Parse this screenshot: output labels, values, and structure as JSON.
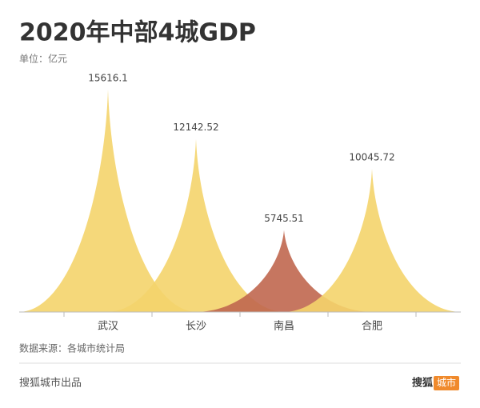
{
  "chart_data": {
    "type": "spike",
    "title": "2020年中部4城GDP",
    "subtitle": "单位：亿元",
    "categories": [
      "武汉",
      "长沙",
      "南昌",
      "合肥"
    ],
    "values": [
      15616.1,
      12142.52,
      5745.51,
      10045.72
    ],
    "colors": [
      "#f4d46c",
      "#f4d46c",
      "#c0674f",
      "#f4d46c"
    ],
    "ylim": [
      0,
      16000
    ],
    "source": "数据来源：各城市统计局"
  },
  "footer": {
    "credit": "搜狐城市出品",
    "brand": "搜狐",
    "brand_tag": "城市"
  }
}
